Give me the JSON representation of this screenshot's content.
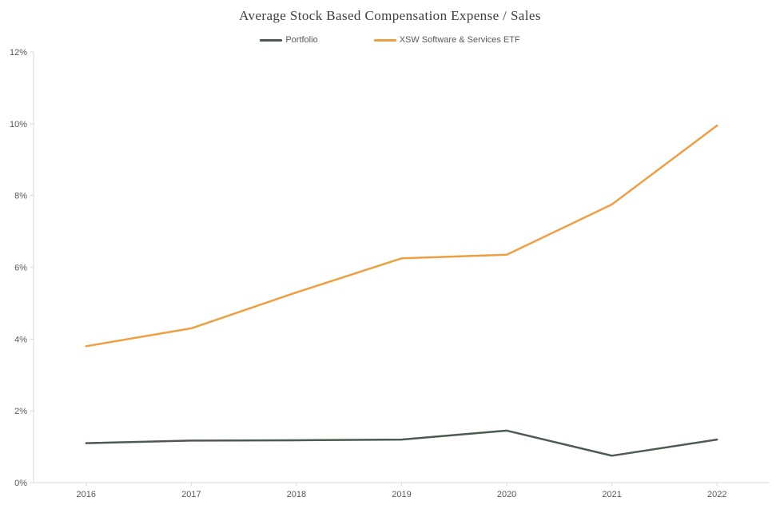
{
  "chart_data": {
    "type": "line",
    "title": "Average Stock Based Compensation Expense / Sales",
    "categories": [
      "2016",
      "2017",
      "2018",
      "2019",
      "2020",
      "2021",
      "2022"
    ],
    "series": [
      {
        "name": "Portfolio",
        "color": "#4d5a4f",
        "values": [
          1.1,
          1.17,
          1.18,
          1.2,
          1.45,
          0.75,
          1.2
        ]
      },
      {
        "name": "XSW Software & Services ETF",
        "color": "#ee9f41",
        "values": [
          3.8,
          4.3,
          5.3,
          6.25,
          6.35,
          7.75,
          9.95
        ]
      }
    ],
    "xlabel": "",
    "ylabel": "",
    "ylim": [
      0,
      12
    ],
    "ytick_step": 2,
    "ytick_labels": [
      "0%",
      "2%",
      "4%",
      "6%",
      "8%",
      "10%",
      "12%"
    ],
    "grid": false,
    "legend_position": "top-center",
    "axis_line_color": "#d9d9d9",
    "tick_label_color": "#595959",
    "line_width": 2.5
  }
}
